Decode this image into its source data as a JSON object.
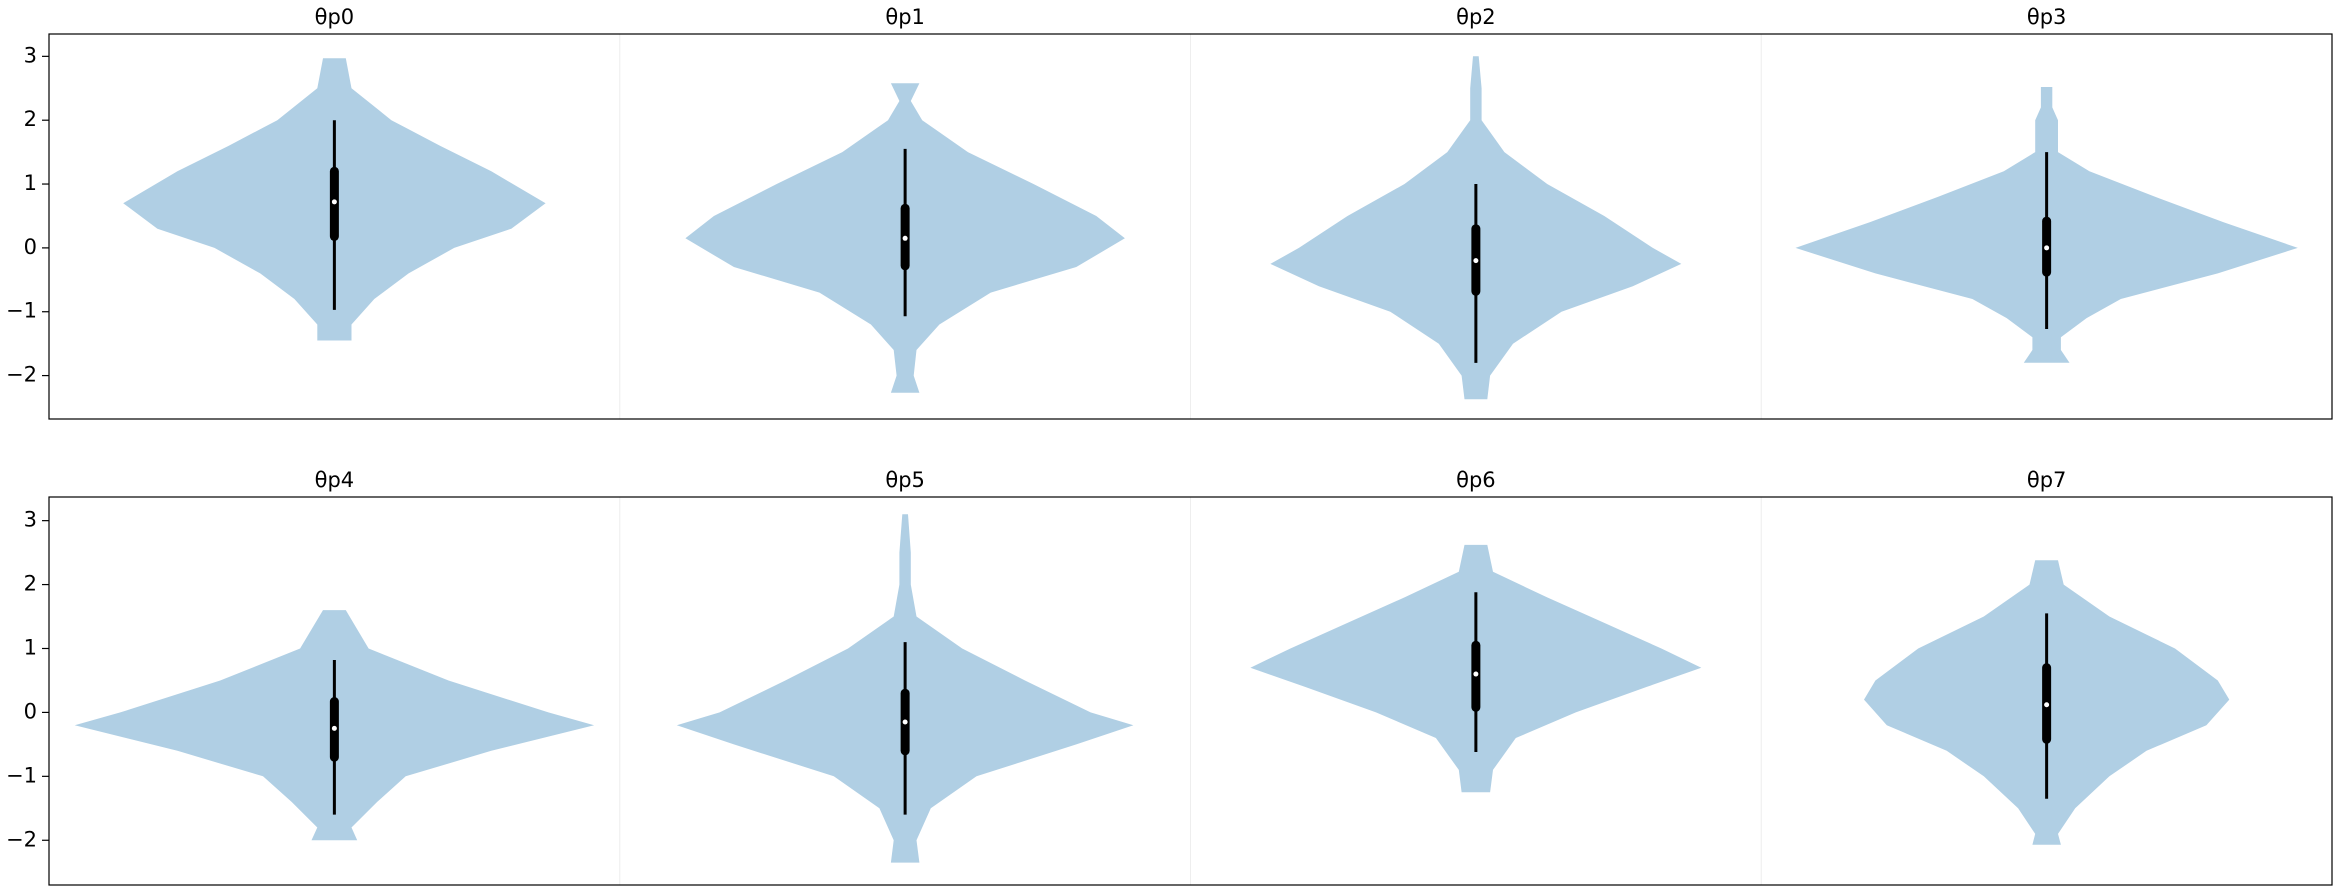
{
  "chart_data": [
    {
      "type": "violin",
      "ylim": [
        -2.68,
        3.35
      ],
      "yticks": [
        {
          "value": -2,
          "label": "−2"
        },
        {
          "value": -1,
          "label": "−1"
        },
        0,
        1,
        2,
        3
      ],
      "color": "#b0cfe4",
      "violins": [
        {
          "title": "θp0",
          "quartiles": [
            0.18,
            0.72,
            1.2
          ],
          "whiskers": [
            -0.97,
            2.0
          ],
          "density": {
            "y": [
              2.97,
              2.5,
              2.0,
              1.6,
              1.2,
              0.7,
              0.3,
              0,
              -0.4,
              -0.8,
              -1.2,
              -1.45
            ],
            "width": [
              0.04,
              0.06,
              0.2,
              0.37,
              0.55,
              0.74,
              0.62,
              0.42,
              0.26,
              0.14,
              0.06,
              0.06
            ]
          }
        },
        {
          "title": "θp1",
          "quartiles": [
            -0.28,
            0.15,
            0.62
          ],
          "whiskers": [
            -1.07,
            1.55
          ],
          "density": {
            "y": [
              2.58,
              2.3,
              2.0,
              1.5,
              1.0,
              0.5,
              0.15,
              -0.3,
              -0.7,
              -1.2,
              -1.6,
              -2.0,
              -2.27
            ],
            "width": [
              0.05,
              0.02,
              0.06,
              0.22,
              0.45,
              0.67,
              0.77,
              0.6,
              0.3,
              0.12,
              0.04,
              0.03,
              0.05
            ]
          }
        },
        {
          "title": "θp2",
          "quartiles": [
            -0.68,
            -0.2,
            0.3
          ],
          "whiskers": [
            -1.8,
            1.0
          ],
          "density": {
            "y": [
              3.0,
              2.5,
              2.0,
              1.5,
              1.0,
              0.5,
              0,
              -0.25,
              -0.6,
              -1.0,
              -1.5,
              -2.0,
              -2.37
            ],
            "width": [
              0.01,
              0.02,
              0.02,
              0.1,
              0.25,
              0.45,
              0.62,
              0.72,
              0.55,
              0.3,
              0.13,
              0.05,
              0.04
            ]
          }
        },
        {
          "title": "θp3",
          "quartiles": [
            -0.38,
            0,
            0.42
          ],
          "whiskers": [
            -1.27,
            1.5
          ],
          "density": {
            "y": [
              2.52,
              2.2,
              2.0,
              1.5,
              1.2,
              0.8,
              0.4,
              0,
              -0.4,
              -0.8,
              -1.1,
              -1.4,
              -1.6,
              -1.8
            ],
            "width": [
              0.02,
              0.02,
              0.04,
              0.04,
              0.15,
              0.38,
              0.62,
              0.88,
              0.6,
              0.26,
              0.14,
              0.05,
              0.05,
              0.08
            ]
          }
        }
      ]
    },
    {
      "type": "violin",
      "ylim": [
        -2.7,
        3.37
      ],
      "yticks": [
        {
          "value": -2,
          "label": "−2"
        },
        {
          "value": -1,
          "label": "−1"
        },
        0,
        1,
        2,
        3
      ],
      "color": "#b0cfe4",
      "violins": [
        {
          "title": "θp4",
          "quartiles": [
            -0.7,
            -0.25,
            0.17
          ],
          "whiskers": [
            -1.6,
            0.82
          ],
          "density": {
            "y": [
              1.6,
              1.0,
              0.5,
              0,
              -0.2,
              -0.6,
              -1.0,
              -1.4,
              -1.8,
              -2.0
            ],
            "width": [
              0.04,
              0.12,
              0.4,
              0.75,
              0.91,
              0.55,
              0.25,
              0.15,
              0.06,
              0.08
            ]
          }
        },
        {
          "title": "θp5",
          "quartiles": [
            -0.6,
            -0.15,
            0.3
          ],
          "whiskers": [
            -1.6,
            1.1
          ],
          "density": {
            "y": [
              3.1,
              2.5,
              2.0,
              1.5,
              1.0,
              0.5,
              0,
              -0.2,
              -0.5,
              -1.0,
              -1.5,
              -2.0,
              -2.35
            ],
            "width": [
              0.01,
              0.02,
              0.02,
              0.04,
              0.2,
              0.42,
              0.65,
              0.8,
              0.6,
              0.25,
              0.09,
              0.04,
              0.05
            ]
          }
        },
        {
          "title": "θp6",
          "quartiles": [
            0.08,
            0.6,
            1.05
          ],
          "whiskers": [
            -0.62,
            1.88
          ],
          "density": {
            "y": [
              2.62,
              2.2,
              1.8,
              1.4,
              1.0,
              0.7,
              0.4,
              0,
              -0.4,
              -0.9,
              -1.25
            ],
            "width": [
              0.04,
              0.06,
              0.25,
              0.45,
              0.65,
              0.79,
              0.6,
              0.35,
              0.14,
              0.06,
              0.05
            ]
          }
        },
        {
          "title": "θp7",
          "quartiles": [
            -0.42,
            0.12,
            0.7
          ],
          "whiskers": [
            -1.35,
            1.55
          ],
          "density": {
            "y": [
              2.38,
              2.0,
              1.5,
              1.0,
              0.5,
              0.2,
              -0.2,
              -0.6,
              -1.0,
              -1.5,
              -1.9,
              -2.07
            ],
            "width": [
              0.04,
              0.06,
              0.22,
              0.45,
              0.6,
              0.64,
              0.56,
              0.35,
              0.22,
              0.1,
              0.04,
              0.05
            ]
          }
        }
      ]
    }
  ]
}
